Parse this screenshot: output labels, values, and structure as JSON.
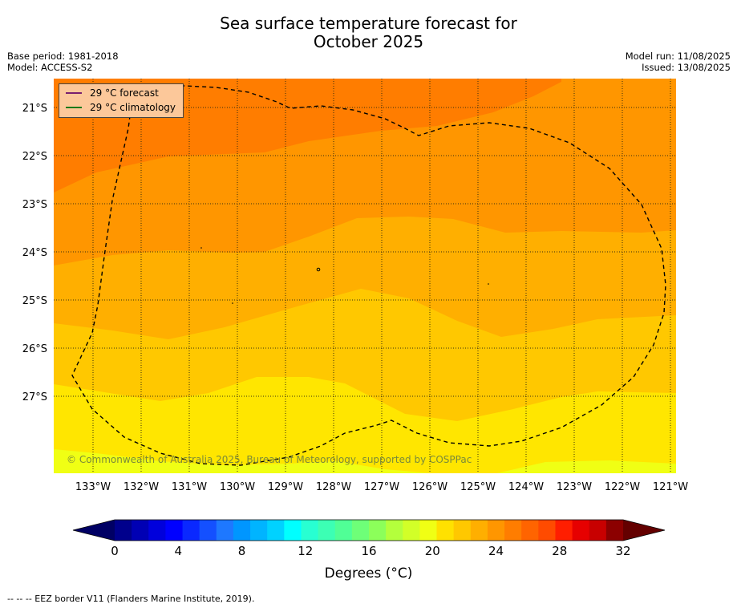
{
  "title_line1": "Sea surface temperature forecast for",
  "title_line2": "October 2025",
  "meta_left": {
    "base_period": "Base period: 1981-2018",
    "model": "Model: ACCESS-S2"
  },
  "meta_right": {
    "model_run": "Model run: 11/08/2025",
    "issued": "Issued: 13/08/2025"
  },
  "legend": [
    {
      "label": "29 °C  forecast",
      "color": "#7a1f6e"
    },
    {
      "label": "29 °C  climatology",
      "color": "#1a7a1a"
    }
  ],
  "lat_labels": [
    "21°S",
    "22°S",
    "23°S",
    "24°S",
    "25°S",
    "26°S",
    "27°S"
  ],
  "lon_labels": [
    "133°W",
    "132°W",
    "131°W",
    "130°W",
    "129°W",
    "128°W",
    "127°W",
    "126°W",
    "125°W",
    "124°W",
    "123°W",
    "122°W",
    "121°W"
  ],
  "copyright": "© Commonwealth of Australia 2025, Bureau of Meteorology, supported by COSPPac",
  "colorbar": {
    "ticks": [
      "0",
      "4",
      "8",
      "12",
      "16",
      "20",
      "24",
      "28",
      "32"
    ],
    "label": "Degrees (°C)",
    "colors": [
      "#00008c",
      "#0000b4",
      "#0000dc",
      "#0000ff",
      "#0a28ff",
      "#1450ff",
      "#1e78ff",
      "#0096ff",
      "#00b4ff",
      "#00d2ff",
      "#00ffff",
      "#28ffd2",
      "#3cffb4",
      "#50ff96",
      "#6eff78",
      "#8cff5a",
      "#b4ff3c",
      "#d2ff28",
      "#f0ff14",
      "#ffe100",
      "#ffc800",
      "#ffaf00",
      "#ff9600",
      "#ff7d00",
      "#ff6400",
      "#ff4b00",
      "#ff1e00",
      "#e60000",
      "#c80000",
      "#8c0000"
    ],
    "low_color": "#000064",
    "high_color": "#640000"
  },
  "footer": "--  --  -- EEZ border V11 (Flanders Marine Institute, 2019)."
}
